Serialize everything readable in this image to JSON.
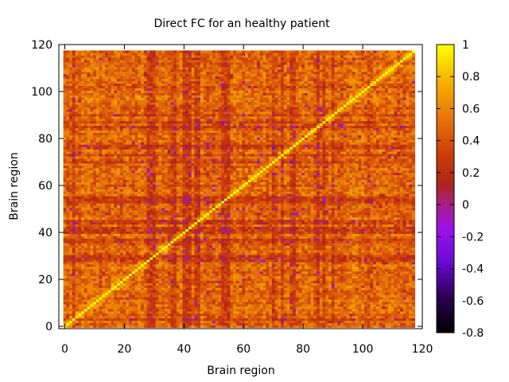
{
  "chart_data": {
    "type": "heatmap",
    "title": "Direct FC for an healthy patient",
    "xlabel": "Brain region",
    "ylabel": "Brain region",
    "xlim": [
      0,
      118
    ],
    "ylim": [
      0,
      118
    ],
    "n": 118,
    "x_ticks": [
      0,
      20,
      40,
      60,
      80,
      100,
      120
    ],
    "y_ticks": [
      0,
      20,
      40,
      60,
      80,
      100,
      120
    ],
    "colorbar": {
      "range": [
        -0.8,
        1
      ],
      "ticks": [
        1,
        0.8,
        0.6,
        0.4,
        0.2,
        0,
        -0.2,
        -0.4,
        -0.6,
        -0.8
      ],
      "tick_labels": [
        "1",
        "0.8",
        "0.6",
        "0.4",
        "0.2",
        "0",
        "-0.2",
        "-0.4",
        "-0.6",
        "-0.8"
      ],
      "palette": "gnuplot-pm3d (black-purple-red-orange-yellow)"
    },
    "diagonal_value": 1,
    "typical_value_range": [
      0.2,
      0.6
    ],
    "low_value_regions_note": "vertical/horizontal bands near regions 3, 28-30, 36-45, 53-55, 70-78, 85 with values near -0.2 to 0.1"
  }
}
